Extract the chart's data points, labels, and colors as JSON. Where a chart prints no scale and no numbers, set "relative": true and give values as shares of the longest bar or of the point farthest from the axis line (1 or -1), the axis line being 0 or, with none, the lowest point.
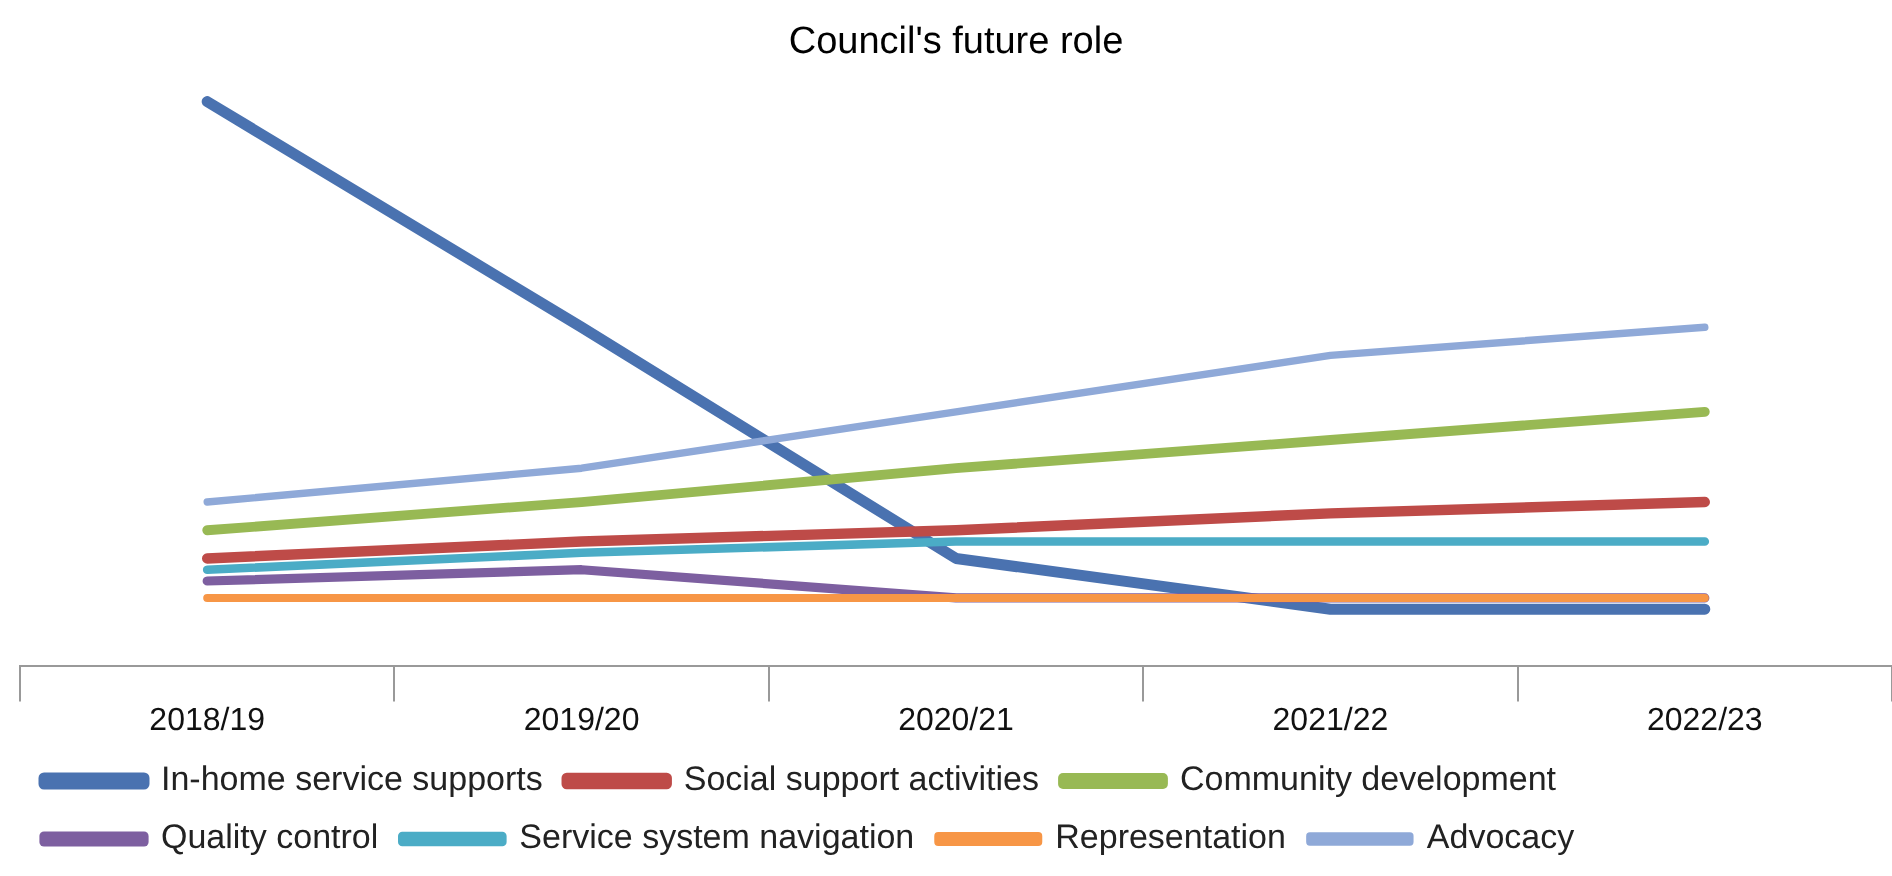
{
  "chart_data": {
    "type": "line",
    "title": "Council's future role",
    "relative": true,
    "categories": [
      "2018/19",
      "2019/20",
      "2020/21",
      "2021/22",
      "2022/23"
    ],
    "legend": "bottom",
    "grid": false,
    "marker": "none",
    "line_style": "solid",
    "series": [
      {
        "name": "In-home service supports",
        "color": "#4a72b0",
        "values": [
          1,
          0.6,
          0.19,
          0.1,
          0.1
        ]
      },
      {
        "name": "Social support activities",
        "color": "#be4b48",
        "values": [
          0.19,
          0.22,
          0.24,
          0.27,
          0.29
        ]
      },
      {
        "name": "Community development",
        "color": "#98b954",
        "values": [
          0.24,
          0.29,
          0.35,
          0.4,
          0.45
        ]
      },
      {
        "name": "Quality control",
        "color": "#7d5fa0",
        "values": [
          0.15,
          0.17,
          0.12,
          0.12,
          0.12
        ]
      },
      {
        "name": "Service system navigation",
        "color": "#4bacc6",
        "values": [
          0.17,
          0.2,
          0.22,
          0.22,
          0.22
        ]
      },
      {
        "name": "Representation",
        "color": "#f79646",
        "values": [
          0.12,
          0.12,
          0.12,
          0.12,
          0.12
        ]
      },
      {
        "name": "Advocacy",
        "color": "#8fa9d8",
        "values": [
          0.29,
          0.35,
          0.45,
          0.55,
          0.6
        ]
      }
    ]
  }
}
